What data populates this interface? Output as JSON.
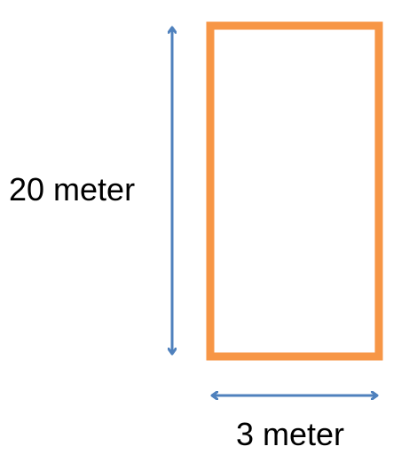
{
  "labels": {
    "height": "20 meter",
    "width": "3 meter"
  },
  "colors": {
    "rectangle_stroke": "#f79646",
    "arrow": "#4f81bd",
    "text": "#000000",
    "background": "#ffffff"
  }
}
